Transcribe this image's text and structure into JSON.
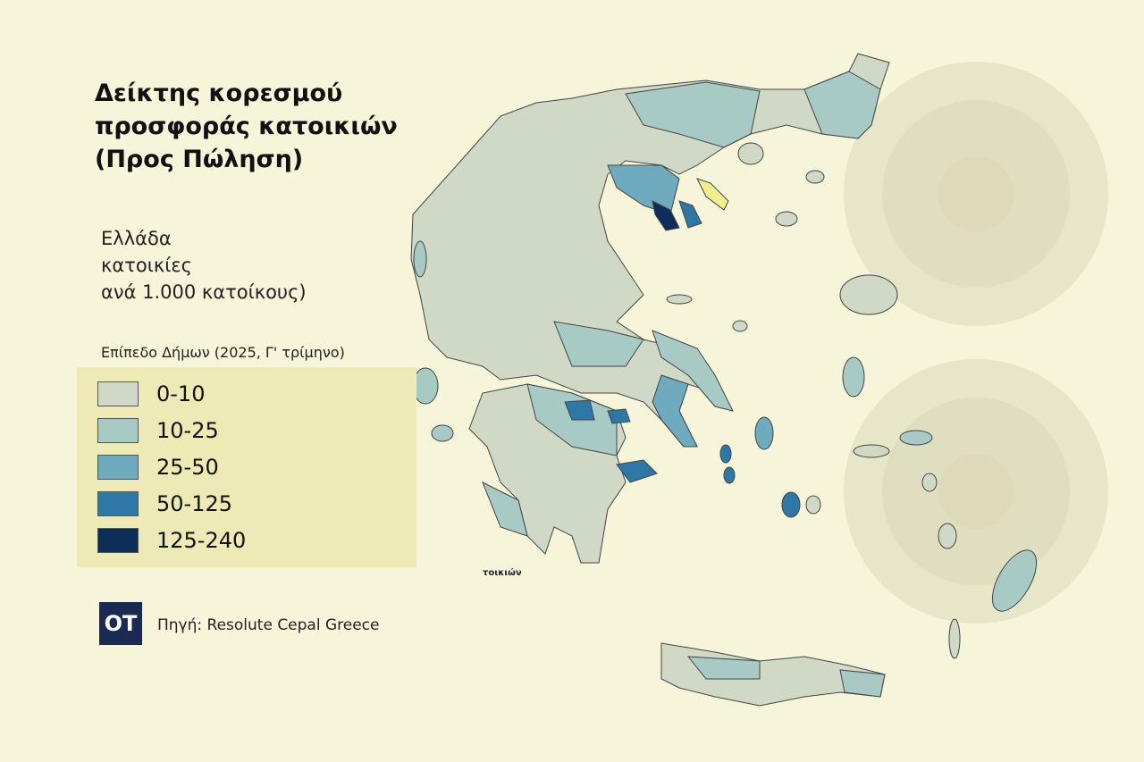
{
  "title": "Δείκτης κορεσμού\nπροσφοράς κατοικιών\n(Προς Πώληση)",
  "subtitle": "Ελλάδα\nκατοικίες\nανά 1.000 κατοίκους)",
  "level_label": "Επίπεδο Δήμων (2025, Γ' τρίμηνο)",
  "legend": [
    {
      "label": "0-10",
      "color": "#cfd9c6"
    },
    {
      "label": "10-25",
      "color": "#a7cac5"
    },
    {
      "label": "25-50",
      "color": "#6eabbf"
    },
    {
      "label": "50-125",
      "color": "#2e78a8"
    },
    {
      "label": "125-240",
      "color": "#0c2c5a"
    }
  ],
  "highlight_color": "#f0ee8c",
  "logo": "OT",
  "source": "Πηγή: Resolute Cepal Greece",
  "stray_label": "τοικιών"
}
